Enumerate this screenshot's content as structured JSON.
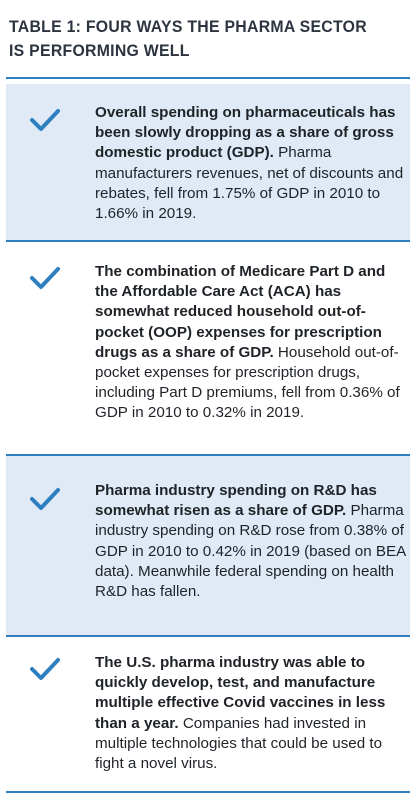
{
  "table": {
    "title": "TABLE 1: FOUR WAYS THE PHARMA SECTOR IS PERFORMING WELL",
    "accent_color": "#2e7fc0",
    "shade_color": "#dfeaf6",
    "rows": [
      {
        "icon": "checkmark-icon",
        "lead": "Overall spending on pharmaceuticals has been slowly dropping as a share of gross domestic product (GDP).",
        "body": "Pharma manufacturers revenues, net of discounts and rebates, fell from 1.75% of GDP in 2010 to 1.66% in 2019."
      },
      {
        "icon": "checkmark-icon",
        "lead": "The combination of Medicare Part D and the Affordable Care Act (ACA) has somewhat reduced household out-of-pocket (OOP) expenses for prescription drugs as a share of GDP.",
        "body": "Household out-of-pocket expenses for prescription drugs, including Part D premiums, fell from 0.36% of GDP in 2010 to 0.32% in 2019."
      },
      {
        "icon": "checkmark-icon",
        "lead": "Pharma industry spending on R&D has somewhat risen as a share of GDP.",
        "body": "Pharma industry spending on R&D rose from 0.38% of GDP in 2010 to 0.42% in 2019 (based on BEA data). Meanwhile federal spending on health R&D has fallen."
      },
      {
        "icon": "checkmark-icon",
        "lead": "The U.S. pharma industry was able to quickly develop, test, and manufacture multiple effective Covid vaccines in less than a year.",
        "body": "Companies had invested in multiple technologies that could be used to fight a novel virus."
      }
    ]
  }
}
